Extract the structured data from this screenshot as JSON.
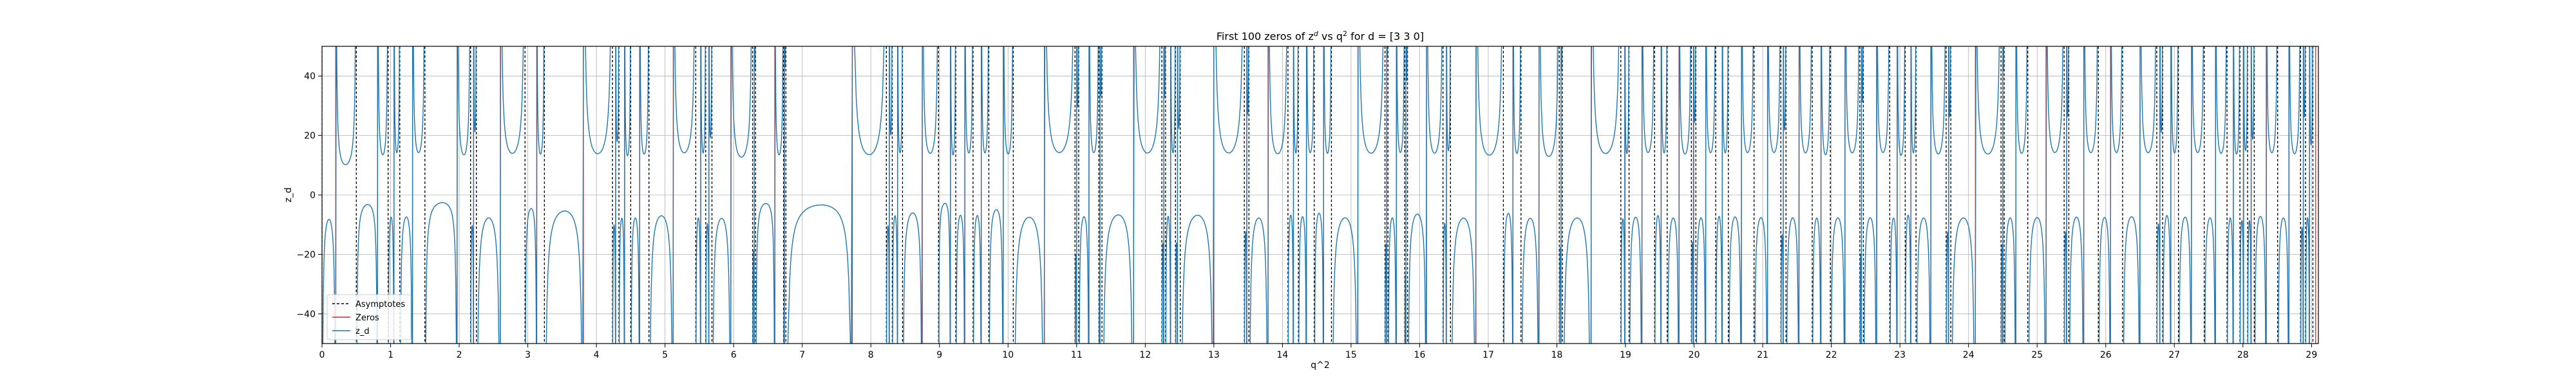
{
  "chart_data": {
    "type": "line",
    "title": "First 100 zeros of z^d vs q^2 for d = [3 3 0]",
    "title_parts": {
      "prefix": "First 100 zeros of z",
      "z_exp": "d",
      "middle": " vs q",
      "q_exp": "2",
      "suffix": " for d = [3 3 0]"
    },
    "xlabel": "q^2",
    "ylabel": "z_d",
    "xlim": [
      0,
      29.1
    ],
    "ylim": [
      -50,
      50
    ],
    "xticks": [
      "0",
      "1",
      "2",
      "3",
      "4",
      "5",
      "6",
      "7",
      "8",
      "9",
      "10",
      "11",
      "12",
      "13",
      "14",
      "15",
      "16",
      "17",
      "18",
      "19",
      "20",
      "21",
      "22",
      "23",
      "24",
      "25",
      "26",
      "27",
      "28",
      "29"
    ],
    "yticks": [
      "−40",
      "−20",
      "0",
      "20",
      "40"
    ],
    "grid": true,
    "legend_position": "lower-left",
    "legend": [
      {
        "label": "Asymptotes",
        "style": "dashed",
        "color": "#000000"
      },
      {
        "label": "Zeros",
        "style": "solid",
        "color": "#d62728"
      },
      {
        "label": "z_d",
        "style": "solid",
        "color": "#1f77b4"
      }
    ],
    "asymptotes": [
      0,
      0.5,
      0.964,
      1.134,
      1.5,
      2.166,
      2.25,
      2.959,
      3.242,
      4.234,
      4.328,
      4.5,
      4.766,
      5.448,
      5.593,
      5.684,
      6.276,
      6.32,
      6.727,
      6.762,
      8.226,
      8.312,
      8.462,
      8.986,
      9.238,
      9.49,
      9.72,
      10.076,
      10.976,
      11.03,
      11.324,
      11.369,
      12.242,
      12.296,
      12.44,
      12.51,
      13.444,
      13.511,
      14.08,
      14.232,
      14.463,
      14.714,
      15.494,
      15.538,
      15.782,
      15.823,
      16.34,
      16.449,
      17.22,
      17.477,
      18.035,
      18.08,
      18.932,
      19.052,
      19.424,
      19.608,
      19.96,
      20.026,
      20.315,
      20.5,
      20.874,
      21.265,
      21.34,
      21.722,
      21.986,
      22.416,
      22.468,
      22.852,
      23.077,
      23.235,
      23.674,
      23.742,
      24.474,
      24.52,
      24.864,
      25.394,
      25.462,
      25.892,
      26.246,
      26.744,
      26.83,
      27.06,
      27.436,
      27.768,
      27.956,
      28.068,
      28.165,
      28.506,
      28.84,
      28.912,
      29.02
    ],
    "zeros": [
      0.2,
      0.81,
      1.05,
      1.32,
      1.97,
      2.21,
      2.6,
      3.13,
      3.81,
      4.28,
      4.41,
      4.63,
      5.12,
      5.52,
      5.64,
      5.96,
      6.3,
      6.6,
      6.74,
      7.73,
      8.27,
      8.39,
      8.75,
      9.16,
      9.37,
      9.61,
      9.93,
      10.53,
      11.0,
      11.18,
      11.34,
      11.83,
      12.27,
      12.37,
      12.47,
      13.0,
      13.48,
      13.79,
      14.16,
      14.35,
      14.6,
      15.1,
      15.52,
      15.66,
      15.8,
      16.1,
      16.39,
      16.82,
      17.36,
      17.74,
      18.06,
      18.5,
      18.99,
      19.24,
      19.52,
      19.78,
      19.99,
      20.17,
      20.41,
      20.69,
      21.07,
      21.3,
      21.53,
      21.85,
      22.2,
      22.44,
      22.66,
      22.96,
      23.16,
      23.45,
      23.71,
      24.1,
      24.5,
      24.69,
      25.13,
      25.43,
      25.68,
      26.07,
      26.5,
      26.79,
      26.95,
      27.25,
      27.6,
      27.86,
      28.01,
      28.12,
      28.34,
      28.67,
      28.88,
      28.97,
      29.06
    ],
    "series": [
      {
        "name": "z_d",
        "color": "#1f77b4",
        "style": "solid"
      }
    ]
  },
  "colors": {
    "asymptote": "#000000",
    "zero": "#d62728",
    "curve": "#1f77b4",
    "grid": "#b0b0b0"
  }
}
